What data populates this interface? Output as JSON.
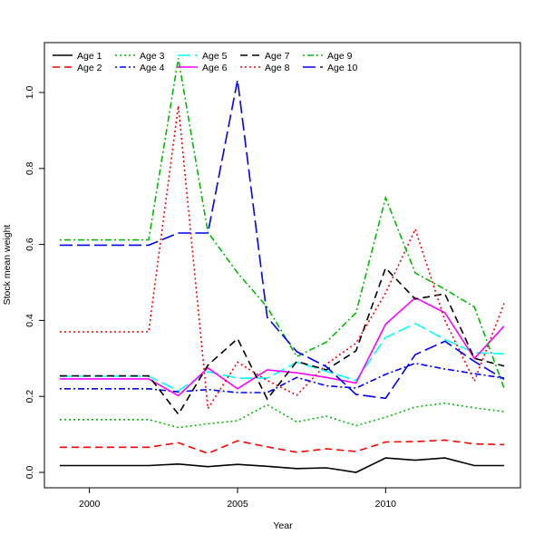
{
  "chart_data": {
    "type": "line",
    "title": "",
    "xlabel": "Year",
    "ylabel": "Stock mean weight",
    "xlim": [
      1999,
      2014
    ],
    "ylim": [
      -0.05,
      1.12
    ],
    "x_ticks": [
      2000,
      2005,
      2010
    ],
    "y_ticks": [
      0.0,
      0.2,
      0.4,
      0.6,
      0.8,
      1.0
    ],
    "y_tick_labels": [
      "0.0",
      "0.2",
      "0.4",
      "0.6",
      "0.8",
      "1.0"
    ],
    "legend_position": "top-left",
    "x": [
      1999,
      2000,
      2001,
      2002,
      2003,
      2004,
      2005,
      2006,
      2007,
      2008,
      2009,
      2010,
      2011,
      2012,
      2013,
      2014
    ],
    "series": [
      {
        "name": "Age 1",
        "color": "#000000",
        "dash": "solid",
        "values": [
          0.018,
          0.018,
          0.018,
          0.018,
          0.022,
          0.015,
          0.021,
          0.016,
          0.01,
          0.012,
          0.0,
          0.038,
          0.032,
          0.038,
          0.018,
          0.018
        ]
      },
      {
        "name": "Age 2",
        "color": "#ff0000",
        "dash": "dashed",
        "values": [
          0.066,
          0.066,
          0.066,
          0.066,
          0.078,
          0.05,
          0.083,
          0.067,
          0.053,
          0.062,
          0.055,
          0.08,
          0.081,
          0.085,
          0.075,
          0.073
        ]
      },
      {
        "name": "Age 3",
        "color": "#00bb00",
        "dash": "dotted",
        "values": [
          0.139,
          0.139,
          0.139,
          0.139,
          0.118,
          0.128,
          0.136,
          0.178,
          0.133,
          0.148,
          0.123,
          0.145,
          0.172,
          0.182,
          0.17,
          0.16
        ]
      },
      {
        "name": "Age 4",
        "color": "#0000ff",
        "dash": "dotdash",
        "values": [
          0.22,
          0.22,
          0.22,
          0.22,
          0.212,
          0.218,
          0.21,
          0.21,
          0.25,
          0.228,
          0.222,
          0.258,
          0.287,
          0.272,
          0.26,
          0.248
        ]
      },
      {
        "name": "Age 5",
        "color": "#00ffff",
        "dash": "longdash",
        "values": [
          0.253,
          0.253,
          0.253,
          0.253,
          0.215,
          0.265,
          0.248,
          0.248,
          0.29,
          0.266,
          0.242,
          0.355,
          0.392,
          0.35,
          0.315,
          0.312
        ]
      },
      {
        "name": "Age 6",
        "color": "#ff00ff",
        "dash": "solid",
        "values": [
          0.246,
          0.246,
          0.246,
          0.246,
          0.202,
          0.275,
          0.22,
          0.27,
          0.262,
          0.25,
          0.235,
          0.39,
          0.46,
          0.42,
          0.3,
          0.385
        ]
      },
      {
        "name": "Age 7",
        "color": "#000000",
        "dash": "dashed",
        "values": [
          0.254,
          0.254,
          0.254,
          0.254,
          0.153,
          0.282,
          0.352,
          0.193,
          0.292,
          0.27,
          0.32,
          0.538,
          0.456,
          0.47,
          0.3,
          0.28
        ]
      },
      {
        "name": "Age 8",
        "color": "#ff0000",
        "dash": "dotted",
        "values": [
          0.37,
          0.37,
          0.37,
          0.37,
          0.965,
          0.168,
          0.29,
          0.242,
          0.203,
          0.285,
          0.34,
          0.472,
          0.64,
          0.4,
          0.24,
          0.445
        ]
      },
      {
        "name": "Age 9",
        "color": "#00bb00",
        "dash": "dotdash",
        "values": [
          0.612,
          0.612,
          0.612,
          0.612,
          1.09,
          0.632,
          0.525,
          0.435,
          0.305,
          0.343,
          0.42,
          0.723,
          0.525,
          0.482,
          0.435,
          0.222
        ]
      },
      {
        "name": "Age 10",
        "color": "#0000ff",
        "dash": "longdash",
        "values": [
          0.598,
          0.598,
          0.598,
          0.598,
          0.63,
          0.63,
          1.033,
          0.408,
          0.318,
          0.278,
          0.205,
          0.195,
          0.31,
          0.345,
          0.292,
          0.245
        ]
      }
    ]
  }
}
